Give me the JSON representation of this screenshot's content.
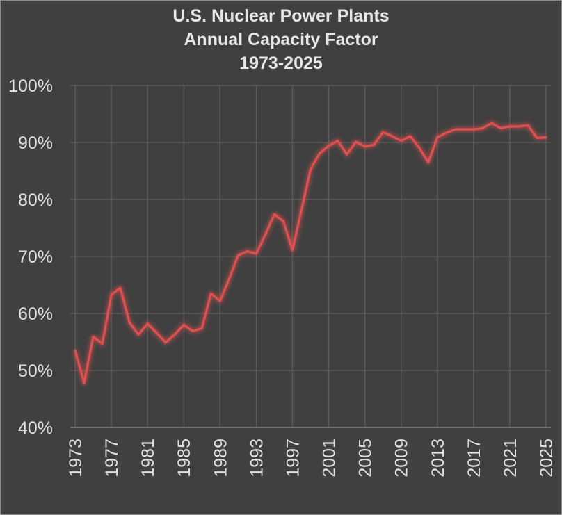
{
  "chart_data": {
    "type": "line",
    "title": [
      "U.S. Nuclear Power Plants",
      "Annual Capacity Factor",
      "1973-2025"
    ],
    "xlabel": "",
    "ylabel": "",
    "ylim": [
      40,
      100
    ],
    "yticks": [
      40,
      50,
      60,
      70,
      80,
      90,
      100
    ],
    "ytick_labels": [
      "40%",
      "50%",
      "60%",
      "70%",
      "80%",
      "90%",
      "100%"
    ],
    "xlim": [
      1973,
      2025
    ],
    "xticks": [
      1973,
      1977,
      1981,
      1985,
      1989,
      1993,
      1997,
      2001,
      2005,
      2009,
      2013,
      2017,
      2021,
      2025
    ],
    "xtick_labels": [
      "1973",
      "1977",
      "1981",
      "1985",
      "1989",
      "1993",
      "1997",
      "2001",
      "2005",
      "2009",
      "2013",
      "2017",
      "2021",
      "2025"
    ],
    "grid": true,
    "line_color": "#e05050",
    "series": [
      {
        "x": [
          1973,
          1974,
          1975,
          1976,
          1977,
          1978,
          1979,
          1980,
          1981,
          1982,
          1983,
          1984,
          1985,
          1986,
          1987,
          1988,
          1989,
          1990,
          1991,
          1992,
          1993,
          1994,
          1995,
          1996,
          1997,
          1998,
          1999,
          2000,
          2001,
          2002,
          2003,
          2004,
          2005,
          2006,
          2007,
          2008,
          2009,
          2010,
          2011,
          2012,
          2013,
          2014,
          2015,
          2016,
          2017,
          2018,
          2019,
          2020,
          2021,
          2022,
          2023,
          2024,
          2025
        ],
        "values": [
          53.5,
          47.8,
          55.9,
          54.7,
          63.3,
          64.5,
          58.4,
          56.3,
          58.2,
          56.6,
          54.9,
          56.3,
          58.0,
          56.9,
          57.4,
          63.5,
          62.2,
          66.0,
          70.2,
          70.9,
          70.5,
          73.8,
          77.4,
          76.2,
          71.1,
          78.2,
          85.3,
          88.1,
          89.4,
          90.3,
          87.9,
          90.1,
          89.3,
          89.6,
          91.8,
          91.1,
          90.3,
          91.1,
          89.1,
          86.5,
          90.9,
          91.7,
          92.3,
          92.3,
          92.3,
          92.5,
          93.4,
          92.5,
          92.8,
          92.8,
          93.0,
          90.8,
          90.9
        ]
      }
    ]
  }
}
